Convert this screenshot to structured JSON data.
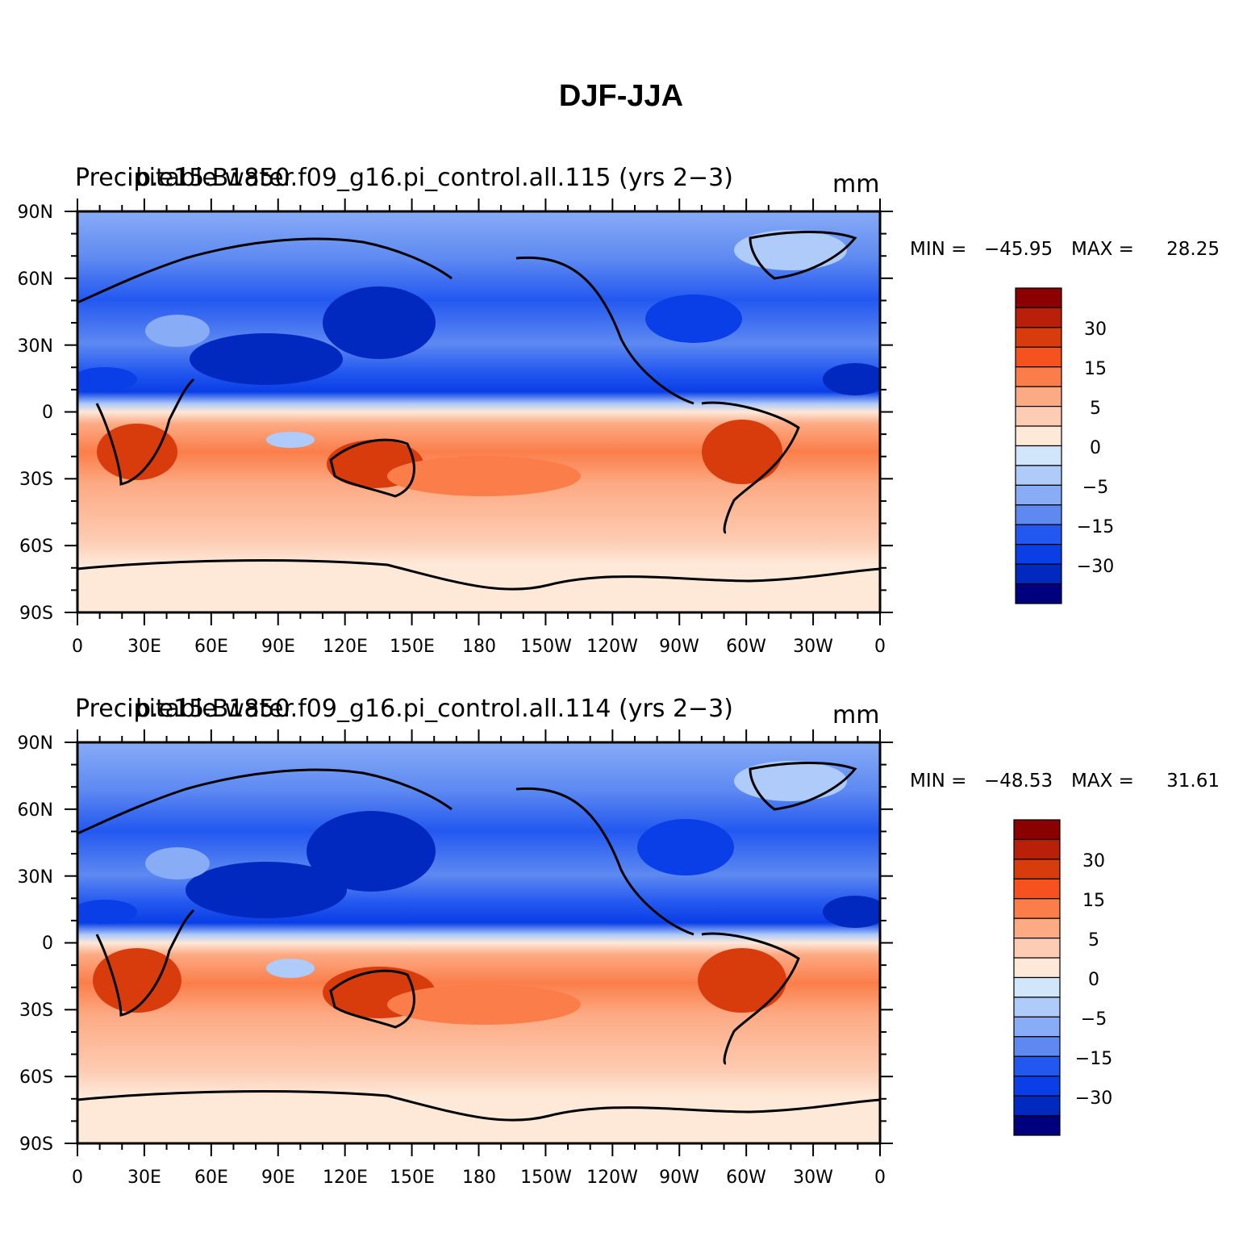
{
  "figure": {
    "title": "DJF-JJA"
  },
  "panels": [
    {
      "left_title": "Precipitable water",
      "center_title": "b.e15.B1850.f09_g16.pi_control.all.115 (yrs 2−3)",
      "units": "mm",
      "min_label": "MIN =",
      "min_value": "−45.95",
      "max_label": "MAX =",
      "max_value": "28.25"
    },
    {
      "left_title": "Precipitable water",
      "center_title": "b.e15.B1850.f09_g16.pi_control.all.114 (yrs 2−3)",
      "units": "mm",
      "min_label": "MIN =",
      "min_value": "−48.53",
      "max_label": "MAX =",
      "max_value": "31.61"
    }
  ],
  "axes": {
    "lat_ticks": [
      "90N",
      "60N",
      "30N",
      "0",
      "30S",
      "60S",
      "90S"
    ],
    "lon_ticks": [
      "0",
      "30E",
      "60E",
      "90E",
      "120E",
      "150E",
      "180",
      "150W",
      "120W",
      "90W",
      "60W",
      "30W",
      "0"
    ]
  },
  "colorbar": {
    "colors_top_to_bottom": [
      "#8b0000",
      "#b8200a",
      "#d93c0c",
      "#f5521f",
      "#fb7e4a",
      "#fcaa84",
      "#fdccb2",
      "#fee8d8",
      "#d2e6fb",
      "#afcbf9",
      "#88acf6",
      "#5d89f1",
      "#2358f0",
      "#0a3ee6",
      "#0129bf",
      "#00007e"
    ],
    "labels": [
      "30",
      "15",
      "5",
      "0",
      "−5",
      "−15",
      "−30"
    ]
  },
  "chart_data": {
    "type": "heatmap",
    "fields": [
      {
        "name": "b.e15.B1850.f09_g16.pi_control.all.115 (yrs 2−3)",
        "variable": "Precipitable water",
        "units": "mm",
        "min": -45.95,
        "max": 28.25
      },
      {
        "name": "b.e15.B1850.f09_g16.pi_control.all.114 (yrs 2−3)",
        "variable": "Precipitable water",
        "units": "mm",
        "min": -48.53,
        "max": 31.61
      }
    ],
    "title": "DJF-JJA",
    "xlim": [
      0,
      360
    ],
    "ylim": [
      -90,
      90
    ],
    "contour_levels": [
      -40,
      -30,
      -25,
      -20,
      -15,
      -10,
      -5,
      -2,
      0,
      2,
      5,
      10,
      15,
      20,
      25,
      30,
      40
    ]
  }
}
